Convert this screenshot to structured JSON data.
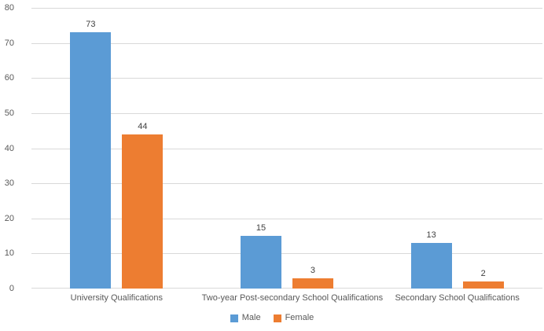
{
  "chart_data": {
    "type": "bar",
    "title": "",
    "xlabel": "",
    "ylabel": "",
    "categories": [
      "University Qualifications",
      "Two-year Post-secondary School Qualifications",
      "Secondary School Qualifications"
    ],
    "series": [
      {
        "name": "Male",
        "color": "#5B9BD5",
        "values": [
          73,
          15,
          13
        ]
      },
      {
        "name": "Female",
        "color": "#ED7D31",
        "values": [
          44,
          3,
          2
        ]
      }
    ],
    "ylim": [
      0,
      80
    ],
    "yticks": [
      0,
      10,
      20,
      30,
      40,
      50,
      60,
      70,
      80
    ],
    "grid": true,
    "legend_position": "bottom"
  },
  "colors": {
    "background": "#FFFFFF",
    "gridline": "#D9D9D9",
    "axis_text": "#595959",
    "data_label_text": "#404040"
  }
}
